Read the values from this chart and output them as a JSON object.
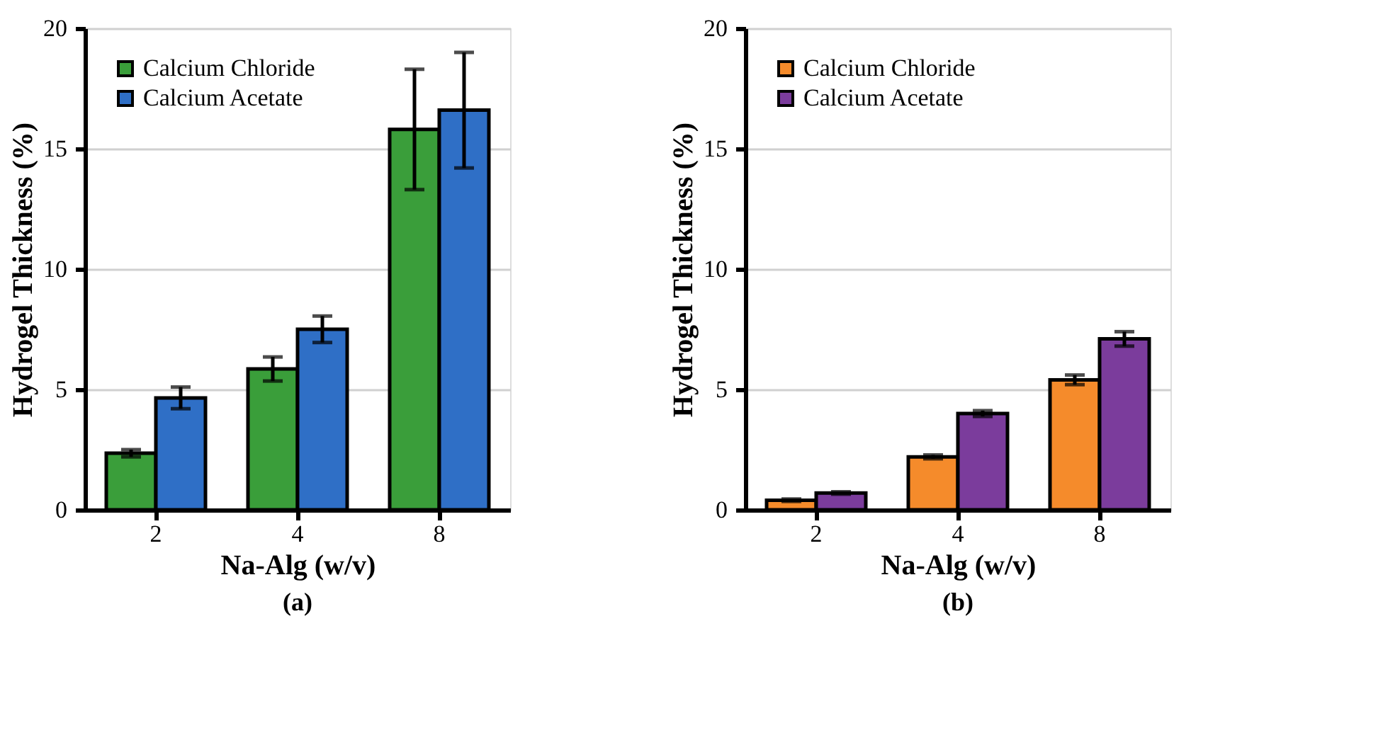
{
  "chart_data": [
    {
      "type": "bar",
      "categories": [
        "2",
        "4",
        "8"
      ],
      "xlabel": "Na-Alg (w/v)",
      "ylabel": "Hydrogel Thickness (%)",
      "ylim": [
        0,
        20
      ],
      "yticks": [
        0,
        5,
        10,
        15,
        20
      ],
      "grid": "y",
      "legend": "top left",
      "annotations": [
        "(a)"
      ],
      "series": [
        {
          "name": "Calcium Chloride",
          "color": "#3a9e3a",
          "values": [
            2.35,
            5.85,
            15.8
          ],
          "errors": [
            0.15,
            0.5,
            2.5
          ]
        },
        {
          "name": "Calcium Acetate",
          "color": "#2f6fc6",
          "values": [
            4.65,
            7.5,
            16.6
          ],
          "errors": [
            0.45,
            0.55,
            2.4
          ]
        }
      ]
    },
    {
      "type": "bar",
      "categories": [
        "2",
        "4",
        "8"
      ],
      "xlabel": "Na-Alg (w/v)",
      "ylabel": "Hydrogel Thickness (%)",
      "ylim": [
        0,
        20
      ],
      "yticks": [
        0,
        5,
        10,
        15,
        20
      ],
      "grid": "y",
      "legend": "top left",
      "annotations": [
        "(b)"
      ],
      "series": [
        {
          "name": "Calcium Chloride",
          "color": "#f58b2b",
          "values": [
            0.4,
            2.2,
            5.4
          ],
          "errors": [
            0.05,
            0.08,
            0.2
          ]
        },
        {
          "name": "Calcium Acetate",
          "color": "#7b3c9c",
          "values": [
            0.7,
            4.0,
            7.1
          ],
          "errors": [
            0.05,
            0.12,
            0.3
          ]
        }
      ]
    }
  ]
}
